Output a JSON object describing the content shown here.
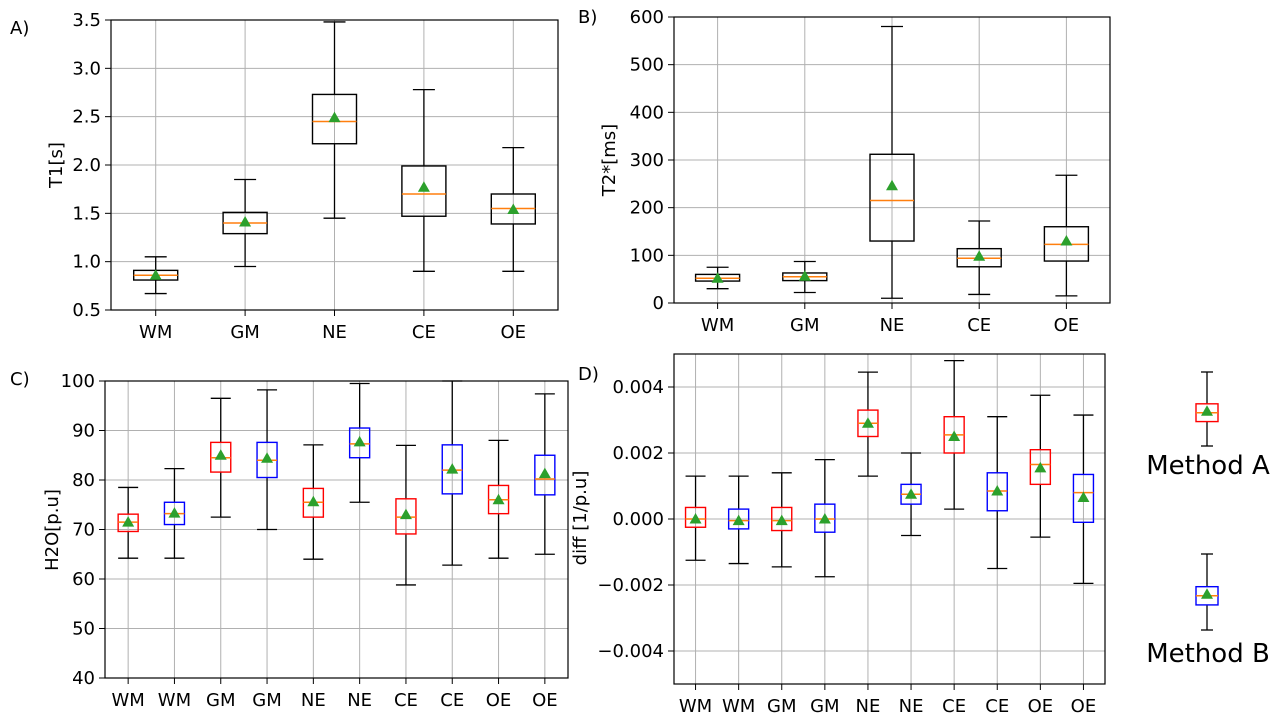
{
  "colors": {
    "grid": "#b0b0b0",
    "median": "#ff7f0e",
    "mean": "#2ca02c",
    "box_default": "#000000",
    "method_a": "#ff0000",
    "method_b": "#0000ff"
  },
  "chart_data": [
    {
      "panel": "A)",
      "type": "box",
      "ylabel": "T1[s]",
      "ylim": [
        0.5,
        3.5
      ],
      "yticks": [
        "0.5",
        "1.0",
        "1.5",
        "2.0",
        "2.5",
        "3.0",
        "3.5"
      ],
      "categories": [
        "WM",
        "GM",
        "NE",
        "CE",
        "OE"
      ],
      "box_colors": [
        "box_default",
        "box_default",
        "box_default",
        "box_default",
        "box_default"
      ],
      "boxes": [
        {
          "whislo": 0.67,
          "q1": 0.81,
          "med": 0.86,
          "q3": 0.91,
          "whishi": 1.05,
          "mean": 0.86
        },
        {
          "whislo": 0.95,
          "q1": 1.29,
          "med": 1.4,
          "q3": 1.51,
          "whishi": 1.85,
          "mean": 1.41
        },
        {
          "whislo": 1.45,
          "q1": 2.22,
          "med": 2.45,
          "q3": 2.73,
          "whishi": 3.48,
          "mean": 2.49
        },
        {
          "whislo": 0.9,
          "q1": 1.47,
          "med": 1.7,
          "q3": 1.99,
          "whishi": 2.78,
          "mean": 1.77
        },
        {
          "whislo": 0.9,
          "q1": 1.39,
          "med": 1.55,
          "q3": 1.7,
          "whishi": 2.18,
          "mean": 1.54
        }
      ]
    },
    {
      "panel": "B)",
      "type": "box",
      "ylabel": "T2*[ms]",
      "ylim": [
        0,
        600
      ],
      "yticks": [
        "0",
        "100",
        "200",
        "300",
        "400",
        "500",
        "600"
      ],
      "categories": [
        "WM",
        "GM",
        "NE",
        "CE",
        "OE"
      ],
      "box_colors": [
        "box_default",
        "box_default",
        "box_default",
        "box_default",
        "box_default"
      ],
      "boxes": [
        {
          "whislo": 30,
          "q1": 46,
          "med": 52,
          "q3": 60,
          "whishi": 75,
          "mean": 52
        },
        {
          "whislo": 22,
          "q1": 47,
          "med": 55,
          "q3": 63,
          "whishi": 87,
          "mean": 56
        },
        {
          "whislo": 10,
          "q1": 130,
          "med": 215,
          "q3": 312,
          "whishi": 580,
          "mean": 246
        },
        {
          "whislo": 18,
          "q1": 76,
          "med": 94,
          "q3": 114,
          "whishi": 172,
          "mean": 98
        },
        {
          "whislo": 15,
          "q1": 88,
          "med": 123,
          "q3": 160,
          "whishi": 268,
          "mean": 130
        }
      ]
    },
    {
      "panel": "C)",
      "type": "box",
      "ylabel": "H2O[p.u]",
      "ylim": [
        40,
        100
      ],
      "yticks": [
        "40",
        "50",
        "60",
        "70",
        "80",
        "90",
        "100"
      ],
      "categories": [
        "WM",
        "WM",
        "GM",
        "GM",
        "NE",
        "NE",
        "CE",
        "CE",
        "OE",
        "OE"
      ],
      "box_colors": [
        "method_a",
        "method_b",
        "method_a",
        "method_b",
        "method_a",
        "method_b",
        "method_a",
        "method_b",
        "method_a",
        "method_b"
      ],
      "boxes": [
        {
          "whislo": 64.2,
          "q1": 69.6,
          "med": 71.5,
          "q3": 73.1,
          "whishi": 78.5,
          "mean": 71.5
        },
        {
          "whislo": 64.2,
          "q1": 71.0,
          "med": 73.2,
          "q3": 75.5,
          "whishi": 82.3,
          "mean": 73.3
        },
        {
          "whislo": 72.5,
          "q1": 81.6,
          "med": 84.5,
          "q3": 87.6,
          "whishi": 96.5,
          "mean": 85.0
        },
        {
          "whislo": 70.0,
          "q1": 80.5,
          "med": 84.0,
          "q3": 87.6,
          "whishi": 98.2,
          "mean": 84.4
        },
        {
          "whislo": 64.0,
          "q1": 72.5,
          "med": 75.5,
          "q3": 78.3,
          "whishi": 87.1,
          "mean": 75.6
        },
        {
          "whislo": 75.5,
          "q1": 84.5,
          "med": 87.3,
          "q3": 90.5,
          "whishi": 99.5,
          "mean": 87.7
        },
        {
          "whislo": 58.8,
          "q1": 69.1,
          "med": 72.5,
          "q3": 76.2,
          "whishi": 87.0,
          "mean": 73.0
        },
        {
          "whislo": 62.8,
          "q1": 77.2,
          "med": 82.0,
          "q3": 87.1,
          "whishi": 100.0,
          "mean": 82.2
        },
        {
          "whislo": 64.2,
          "q1": 73.2,
          "med": 76.0,
          "q3": 78.9,
          "whishi": 88.0,
          "mean": 76.0
        },
        {
          "whislo": 65.0,
          "q1": 77.0,
          "med": 80.2,
          "q3": 85.0,
          "whishi": 97.4,
          "mean": 81.3
        }
      ]
    },
    {
      "panel": "D)",
      "type": "box",
      "ylabel": "diff [1/p.u]",
      "ylim": [
        -0.005,
        0.005
      ],
      "yticks": [
        "−0.004",
        "−0.002",
        "0.000",
        "0.002",
        "0.004"
      ],
      "categories": [
        "WM",
        "WM",
        "GM",
        "GM",
        "NE",
        "NE",
        "CE",
        "CE",
        "OE",
        "OE"
      ],
      "box_colors": [
        "method_a",
        "method_b",
        "method_a",
        "method_b",
        "method_a",
        "method_b",
        "method_a",
        "method_b",
        "method_a",
        "method_b"
      ],
      "boxes": [
        {
          "whislo": -0.00125,
          "q1": -0.00025,
          "med": 0.0,
          "q3": 0.00035,
          "whishi": 0.0013,
          "mean": 0.0
        },
        {
          "whislo": -0.00135,
          "q1": -0.0003,
          "med": -5e-05,
          "q3": 0.0003,
          "whishi": 0.0013,
          "mean": -5e-05
        },
        {
          "whislo": -0.00145,
          "q1": -0.00035,
          "med": -5e-05,
          "q3": 0.00035,
          "whishi": 0.0014,
          "mean": -5e-05
        },
        {
          "whislo": -0.00175,
          "q1": -0.0004,
          "med": 0.0,
          "q3": 0.00045,
          "whishi": 0.0018,
          "mean": 0.0
        },
        {
          "whislo": 0.0013,
          "q1": 0.0025,
          "med": 0.0029,
          "q3": 0.0033,
          "whishi": 0.00445,
          "mean": 0.0029
        },
        {
          "whislo": -0.0005,
          "q1": 0.00045,
          "med": 0.00075,
          "q3": 0.00105,
          "whishi": 0.002,
          "mean": 0.00075
        },
        {
          "whislo": 0.0003,
          "q1": 0.002,
          "med": 0.00255,
          "q3": 0.0031,
          "whishi": 0.0048,
          "mean": 0.0025
        },
        {
          "whislo": -0.0015,
          "q1": 0.00025,
          "med": 0.00085,
          "q3": 0.0014,
          "whishi": 0.0031,
          "mean": 0.00085
        },
        {
          "whislo": -0.00055,
          "q1": 0.00105,
          "med": 0.00165,
          "q3": 0.0021,
          "whishi": 0.00375,
          "mean": 0.00155
        },
        {
          "whislo": -0.00195,
          "q1": -0.0001,
          "med": 0.0008,
          "q3": 0.00135,
          "whishi": 0.00315,
          "mean": 0.00065
        }
      ]
    }
  ],
  "legend": {
    "method_a": {
      "label": "Method A",
      "color_key": "method_a",
      "box": {
        "whislo": 0,
        "q1": 0.33,
        "med": 0.45,
        "q3": 0.57,
        "whishi": 1,
        "mean": 0.47
      }
    },
    "method_b": {
      "label": "Method B",
      "color_key": "method_b",
      "box": {
        "whislo": 0,
        "q1": 0.33,
        "med": 0.45,
        "q3": 0.57,
        "whishi": 1,
        "mean": 0.47
      }
    }
  }
}
